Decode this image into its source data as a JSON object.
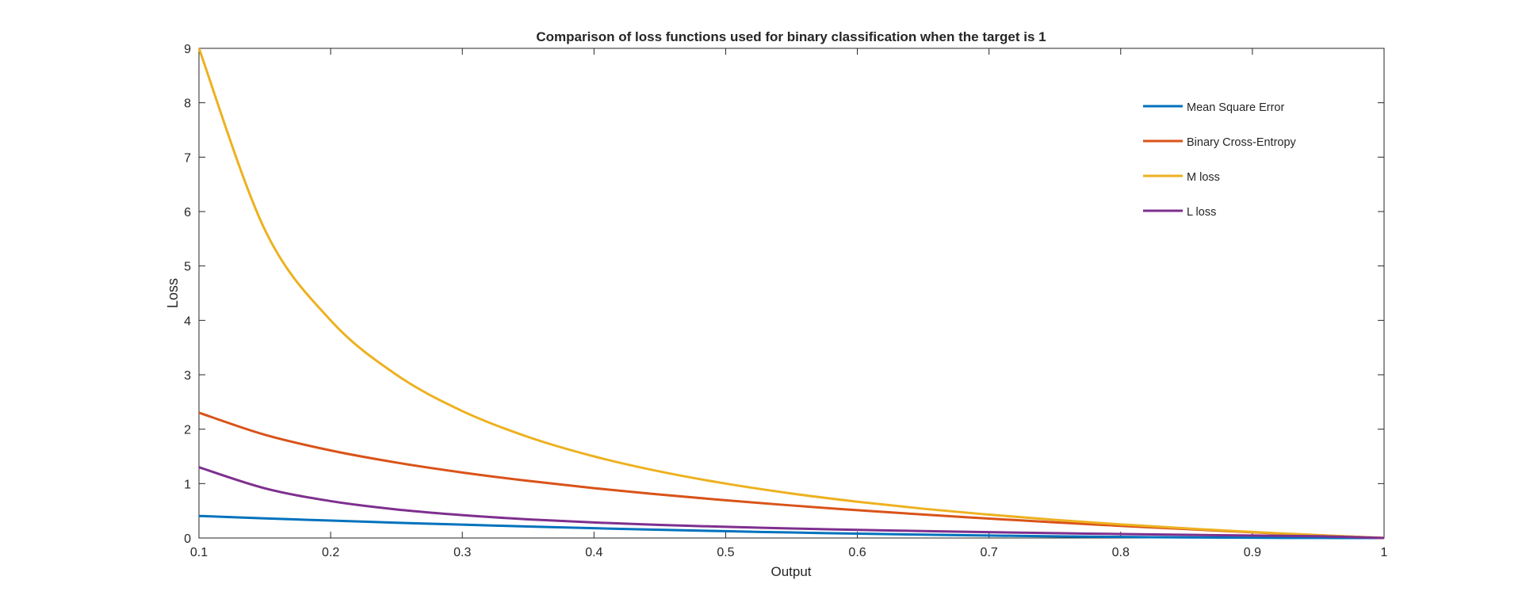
{
  "chart_data": {
    "type": "line",
    "title": "Comparison of loss functions used for binary classification when the target is 1",
    "xlabel": "Output",
    "ylabel": "Loss",
    "xlim": [
      0.1,
      1
    ],
    "ylim": [
      0,
      9
    ],
    "xticks": [
      "0.1",
      "0.2",
      "0.3",
      "0.4",
      "0.5",
      "0.6",
      "0.7",
      "0.8",
      "0.9",
      "1"
    ],
    "yticks": [
      "0",
      "1",
      "2",
      "3",
      "4",
      "5",
      "6",
      "7",
      "8",
      "9"
    ],
    "grid": false,
    "legend_position": "top-right",
    "x": [
      0.1,
      0.15,
      0.2,
      0.25,
      0.3,
      0.35,
      0.4,
      0.45,
      0.5,
      0.55,
      0.6,
      0.65,
      0.7,
      0.75,
      0.8,
      0.85,
      0.9,
      0.95,
      1.0
    ],
    "series": [
      {
        "name": "Mean Square Error",
        "color": "#0072BD",
        "values": [
          0.405,
          0.361,
          0.32,
          0.281,
          0.245,
          0.211,
          0.18,
          0.151,
          0.125,
          0.101,
          0.08,
          0.061,
          0.045,
          0.031,
          0.02,
          0.011,
          0.005,
          0.001,
          0.0
        ]
      },
      {
        "name": "Binary Cross-Entropy",
        "color": "#D95319",
        "values": [
          2.303,
          1.897,
          1.609,
          1.386,
          1.204,
          1.05,
          0.916,
          0.799,
          0.693,
          0.598,
          0.511,
          0.431,
          0.357,
          0.288,
          0.223,
          0.163,
          0.105,
          0.051,
          0.0
        ]
      },
      {
        "name": "M loss",
        "color": "#EDB120",
        "values": [
          9.0,
          5.667,
          4.0,
          3.0,
          2.333,
          1.857,
          1.5,
          1.222,
          1.0,
          0.818,
          0.667,
          0.538,
          0.429,
          0.333,
          0.25,
          0.176,
          0.111,
          0.053,
          0.0
        ]
      },
      {
        "name": "L loss",
        "color": "#7E2F8E",
        "values": [
          1.3,
          0.913,
          0.678,
          0.525,
          0.42,
          0.343,
          0.285,
          0.241,
          0.205,
          0.175,
          0.149,
          0.127,
          0.107,
          0.089,
          0.073,
          0.058,
          0.045,
          0.032,
          0.0
        ]
      }
    ]
  }
}
